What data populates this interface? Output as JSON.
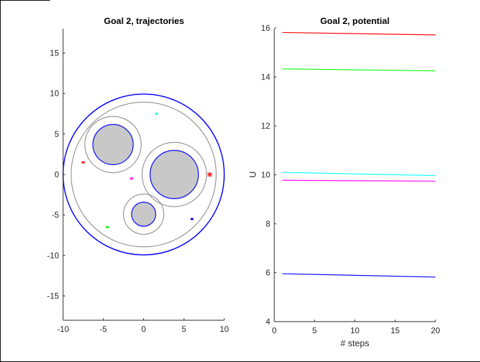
{
  "chart_data": [
    {
      "type": "scatter",
      "title": "Goal 2, trajectories",
      "xlabel": "",
      "ylabel": "",
      "xlim": [
        -10,
        10
      ],
      "ylim": [
        -18,
        18
      ],
      "xticks": [
        -10,
        -5,
        0,
        5,
        10
      ],
      "yticks": [
        -15,
        -10,
        -5,
        0,
        5,
        10,
        15
      ],
      "grid": false,
      "workspace": {
        "center": [
          0,
          0
        ],
        "outer_radius": 10,
        "inner_radius": 9,
        "outer_color": "#0000ff",
        "inner_color": "#808080"
      },
      "obstacles": [
        {
          "center": [
            -3.8,
            3.7
          ],
          "radius": 2.5,
          "halo_radius": 3.5
        },
        {
          "center": [
            3.8,
            0
          ],
          "radius": 3.0,
          "halo_radius": 4.0
        },
        {
          "center": [
            0,
            -4.9
          ],
          "radius": 1.5,
          "halo_radius": 2.5
        }
      ],
      "goal": {
        "x": 8.2,
        "y": 0,
        "marker": "*",
        "color": "#ff0000"
      },
      "agents": [
        {
          "color": "#ff0000",
          "x": -7.5,
          "y": 1.5
        },
        {
          "color": "#00ff00",
          "x": -4.5,
          "y": -6.5
        },
        {
          "color": "#00ffff",
          "x": 1.6,
          "y": 7.5
        },
        {
          "color": "#ff00ff",
          "x": -1.5,
          "y": -0.5
        },
        {
          "color": "#0000ff",
          "x": 6.0,
          "y": -5.5
        }
      ]
    },
    {
      "type": "line",
      "title": "Goal 2, potential",
      "xlabel": "# steps",
      "ylabel": "U",
      "xlim": [
        0,
        20
      ],
      "ylim": [
        4,
        16
      ],
      "xticks": [
        0,
        5,
        10,
        15,
        20
      ],
      "yticks": [
        4,
        6,
        8,
        10,
        12,
        14,
        16
      ],
      "grid": false,
      "x": [
        1,
        20
      ],
      "series": [
        {
          "color": "#ff0000",
          "values": [
            15.82,
            15.72
          ]
        },
        {
          "color": "#00ff00",
          "values": [
            14.33,
            14.25
          ]
        },
        {
          "color": "#00ffff",
          "values": [
            10.1,
            9.97
          ]
        },
        {
          "color": "#ff00ff",
          "values": [
            9.78,
            9.74
          ]
        },
        {
          "color": "#0000ff",
          "values": [
            5.96,
            5.82
          ]
        }
      ]
    }
  ]
}
